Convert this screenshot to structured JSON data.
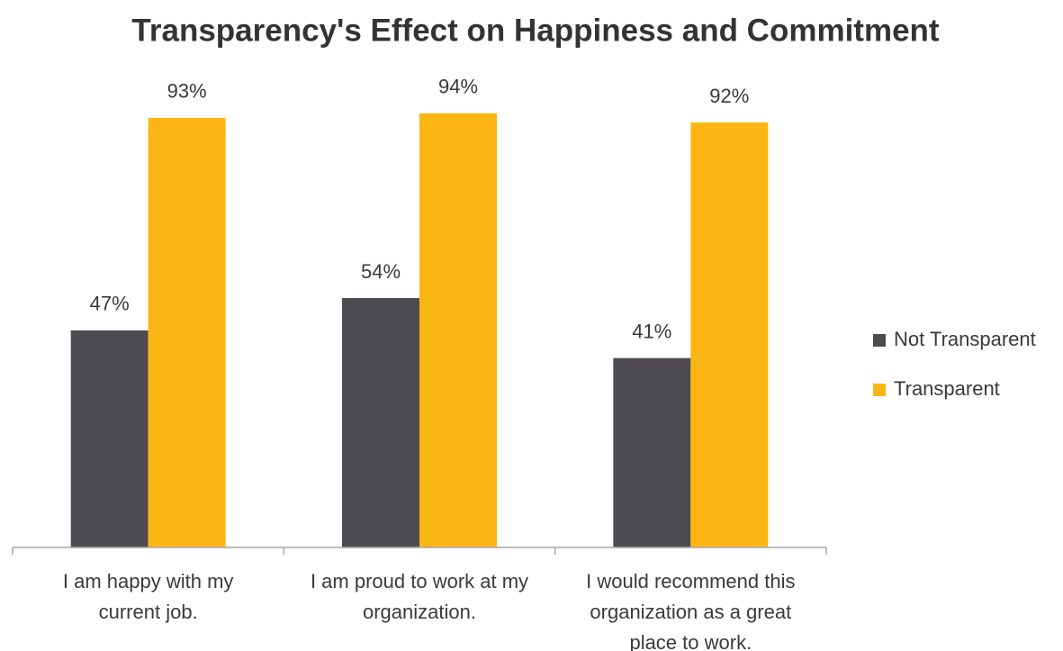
{
  "chart_data": {
    "type": "bar",
    "title": "Transparency's Effect on Happiness and Commitment",
    "categories": [
      "I am happy with my\ncurrent job.",
      "I am proud to work at my\norganization.",
      "I would recommend this\norganization as a great\nplace to work."
    ],
    "series": [
      {
        "name": "Not Transparent",
        "color": "#4e4c50",
        "values": [
          47,
          54,
          41
        ],
        "value_labels": [
          "47%",
          "54%",
          "41%"
        ]
      },
      {
        "name": "Transparent",
        "color": "#fbb615",
        "values": [
          93,
          94,
          92
        ],
        "value_labels": [
          "93%",
          "94%",
          "92%"
        ]
      }
    ],
    "ylim": [
      0,
      100
    ],
    "legend": "right"
  }
}
